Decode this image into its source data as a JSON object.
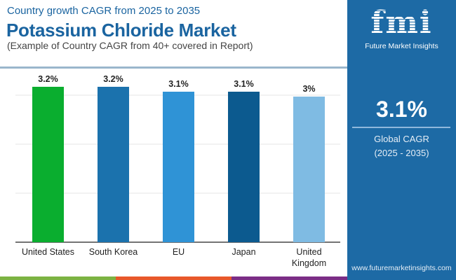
{
  "header": {
    "subtitle": "Country growth CAGR from 2025 to 2035",
    "title": "Potassium Chloride Market",
    "note": "(Example of Country CAGR from 40+ covered in Report)"
  },
  "sidebar": {
    "logo_text": "fmi",
    "brand": "Future Market Insights",
    "global_value": "3.1%",
    "global_label": "Global CAGR",
    "global_period": "(2025 - 2035)",
    "url": "www.futuremarketinsights.com",
    "color": "#1d6aa5"
  },
  "chart_data": {
    "type": "bar",
    "categories": [
      "United States",
      "South Korea",
      "EU",
      "Japan",
      "United Kingdom"
    ],
    "values": [
      3.2,
      3.2,
      3.1,
      3.1,
      3.0
    ],
    "data_labels": [
      "3.2%",
      "3.2%",
      "3.1%",
      "3.1%",
      "3%"
    ],
    "colors": [
      "#0aae2f",
      "#1b72ad",
      "#2f93d6",
      "#0c5a8f",
      "#7fbbe3"
    ],
    "ylim": [
      0,
      3.6
    ],
    "grid": true,
    "xlabel": "",
    "ylabel": ""
  },
  "footer_stripe_colors": [
    "#7cb342",
    "#e8582a",
    "#7b2d86",
    "#1d6aa5"
  ]
}
